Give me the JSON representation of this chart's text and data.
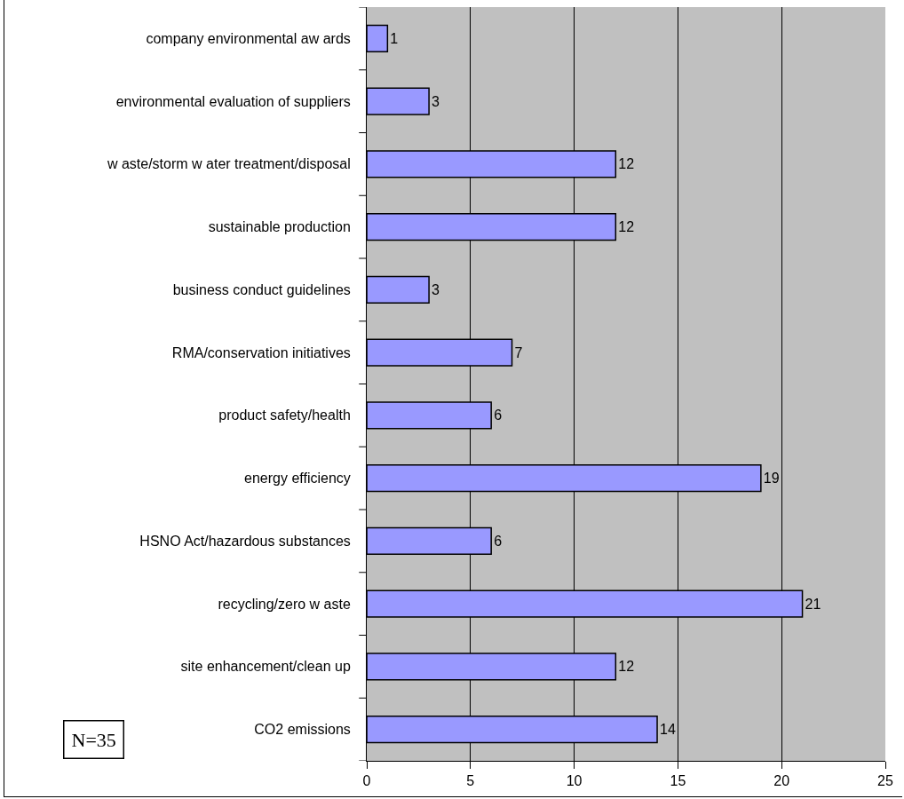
{
  "chart_data": {
    "type": "bar",
    "orientation": "horizontal",
    "categories": [
      "company environmental aw ards",
      "environmental evaluation of suppliers",
      "w aste/storm w ater treatment/disposal",
      "sustainable production",
      "business conduct guidelines",
      "RMA/conservation initiatives",
      "product safety/health",
      "energy efficiency",
      "HSNO Act/hazardous substances",
      "recycling/zero w aste",
      "site enhancement/clean up",
      "CO2 emissions"
    ],
    "values": [
      1,
      3,
      12,
      12,
      3,
      7,
      6,
      19,
      6,
      21,
      12,
      14
    ],
    "color": "#9999ff",
    "data_labels": true,
    "xlim": [
      0,
      25
    ],
    "xticks": [
      0,
      5,
      10,
      15,
      20,
      25
    ],
    "grid": "x",
    "annotations": [
      "N=35"
    ]
  }
}
